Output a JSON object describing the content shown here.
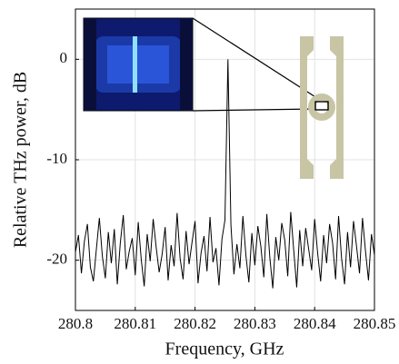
{
  "chart_data": {
    "type": "line",
    "xlabel": "Frequency, GHz",
    "ylabel": "Relative THz power, dB",
    "xlim": [
      280.8,
      280.85
    ],
    "xticks": [
      280.8,
      280.81,
      280.82,
      280.83,
      280.84,
      280.85
    ],
    "ylim": [
      -25,
      5
    ],
    "yticks": [
      -20,
      -10,
      0
    ],
    "grid": true,
    "color": "#000000",
    "x": [
      280.8,
      280.8005,
      280.801,
      280.8015,
      280.802,
      280.8025,
      280.803,
      280.8035,
      280.804,
      280.8045,
      280.805,
      280.8055,
      280.806,
      280.8065,
      280.807,
      280.8075,
      280.808,
      280.8085,
      280.809,
      280.8095,
      280.81,
      280.8105,
      280.811,
      280.8115,
      280.812,
      280.8125,
      280.813,
      280.8135,
      280.814,
      280.8145,
      280.815,
      280.8155,
      280.816,
      280.8165,
      280.817,
      280.8175,
      280.818,
      280.8185,
      280.819,
      280.8195,
      280.82,
      280.8205,
      280.821,
      280.8215,
      280.822,
      280.8225,
      280.823,
      280.8235,
      280.824,
      280.8245,
      280.825,
      280.8255,
      280.826,
      280.8265,
      280.827,
      280.8275,
      280.828,
      280.8285,
      280.829,
      280.8295,
      280.83,
      280.8305,
      280.831,
      280.8315,
      280.832,
      280.8325,
      280.833,
      280.8335,
      280.834,
      280.8345,
      280.835,
      280.8355,
      280.836,
      280.8365,
      280.837,
      280.8375,
      280.838,
      280.8385,
      280.839,
      280.8395,
      280.84,
      280.8405,
      280.841,
      280.8415,
      280.842,
      280.8425,
      280.843,
      280.8435,
      280.844,
      280.8445,
      280.845,
      280.8455,
      280.846,
      280.8465,
      280.847,
      280.8475,
      280.848,
      280.8485,
      280.849,
      280.8495,
      280.85
    ],
    "values": [
      -19.2,
      -17.5,
      -21.3,
      -18.1,
      -16.4,
      -20.7,
      -22.1,
      -18.9,
      -15.8,
      -19.6,
      -21.8,
      -17.2,
      -20.3,
      -16.9,
      -22.4,
      -18.3,
      -15.5,
      -20.9,
      -19.1,
      -17.8,
      -21.5,
      -16.2,
      -19.9,
      -22.6,
      -17.4,
      -20.1,
      -15.9,
      -18.7,
      -21.2,
      -19.4,
      -16.7,
      -22.0,
      -18.5,
      -20.6,
      -15.3,
      -19.8,
      -21.9,
      -17.1,
      -20.4,
      -18.2,
      -16.1,
      -22.3,
      -19.3,
      -17.6,
      -21.1,
      -15.7,
      -20.2,
      -18.8,
      -22.5,
      -17.9,
      -16.0,
      0,
      -16.5,
      -21.4,
      -18.4,
      -20.8,
      -15.6,
      -19.5,
      -22.2,
      -17.3,
      -20.5,
      -16.6,
      -18.6,
      -21.7,
      -15.4,
      -19.7,
      -22.8,
      -17.7,
      -20.0,
      -16.3,
      -18.0,
      -21.6,
      -15.2,
      -19.0,
      -22.7,
      -17.0,
      -20.6,
      -16.8,
      -18.9,
      -21.0,
      -15.9,
      -19.3,
      -22.1,
      -17.5,
      -20.3,
      -16.4,
      -18.3,
      -21.9,
      -15.6,
      -19.8,
      -22.4,
      -17.2,
      -20.7,
      -16.1,
      -18.6,
      -21.3,
      -15.8,
      -19.1,
      -22.0,
      -17.4,
      -19.5
    ]
  }
}
